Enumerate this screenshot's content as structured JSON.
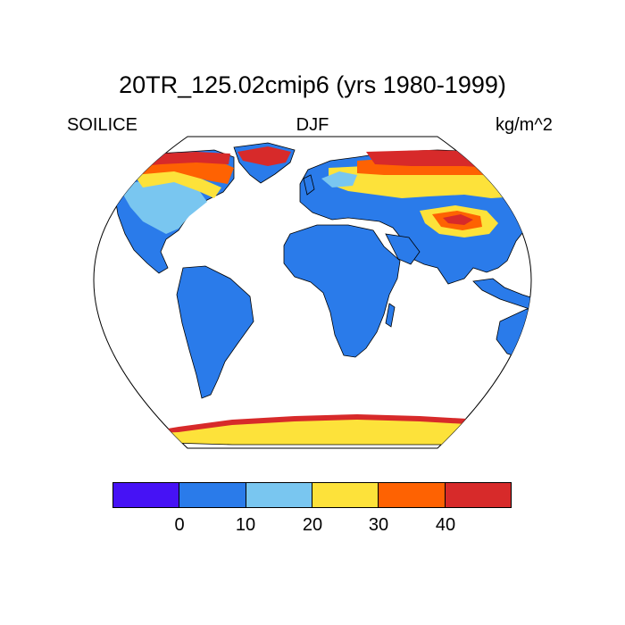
{
  "title": "20TR_125.02cmip6 (yrs 1980-1999)",
  "left_label": "SOILICE",
  "center_label": "DJF",
  "right_label": "kg/m^2",
  "colorbar": {
    "colors": [
      "#4612f5",
      "#2a7bea",
      "#79c6f0",
      "#fde23a",
      "#fe6202",
      "#d72a2a"
    ],
    "tick_labels": [
      "0",
      "10",
      "20",
      "30",
      "40"
    ]
  },
  "map_colors": {
    "ocean": "#ffffff",
    "base_land": "#2a7bea",
    "outline": "#000000"
  }
}
